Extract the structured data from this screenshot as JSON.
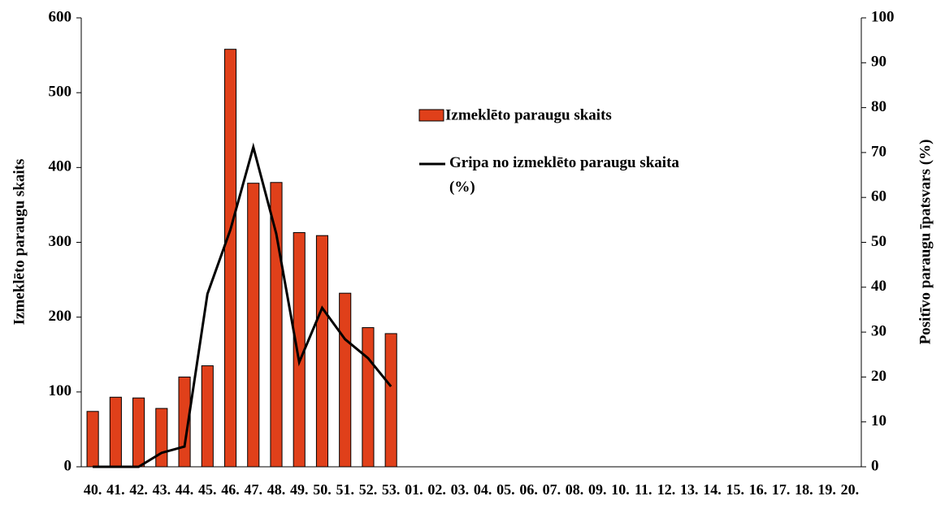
{
  "chart_data": {
    "type": "bar_line",
    "categories": [
      "40.",
      "41.",
      "42.",
      "43.",
      "44.",
      "45.",
      "46.",
      "47.",
      "48.",
      "49.",
      "50.",
      "51.",
      "52.",
      "53.",
      "01.",
      "02.",
      "03.",
      "04.",
      "05.",
      "06.",
      "07.",
      "08.",
      "09.",
      "10.",
      "11.",
      "12.",
      "13.",
      "14.",
      "15.",
      "16.",
      "17.",
      "18.",
      "19.",
      "20."
    ],
    "series": [
      {
        "name": "Izmeklēto paraugu skaits",
        "type": "bar",
        "color": "#e0401a",
        "values": [
          74,
          93,
          92,
          78,
          120,
          135,
          558,
          379,
          380,
          313,
          309,
          232,
          186,
          178,
          null,
          null,
          null,
          null,
          null,
          null,
          null,
          null,
          null,
          null,
          null,
          null,
          null,
          null,
          null,
          null,
          null,
          null,
          null,
          null
        ]
      },
      {
        "name": "Gripa no izmeklēto paraugu skaita (%)",
        "type": "line",
        "color": "#000000",
        "axis": "y2",
        "values": [
          0,
          0,
          0,
          3.1,
          4.5,
          38.5,
          52.8,
          71.2,
          51.9,
          23.3,
          35.4,
          28.4,
          24.2,
          17.9,
          null,
          null,
          null,
          null,
          null,
          null,
          null,
          null,
          null,
          null,
          null,
          null,
          null,
          null,
          null,
          null,
          null,
          null,
          null,
          null
        ]
      }
    ],
    "ylabel": "Izmeklēto paraugu skaits",
    "y2label": "Positīvo paraugu īpatsvars (%)",
    "ylim": [
      0,
      600
    ],
    "yticks": [
      0,
      100,
      200,
      300,
      400,
      500,
      600
    ],
    "y2lim": [
      0,
      100
    ],
    "y2ticks": [
      0,
      10,
      20,
      30,
      40,
      50,
      60,
      70,
      80,
      90,
      100
    ]
  }
}
